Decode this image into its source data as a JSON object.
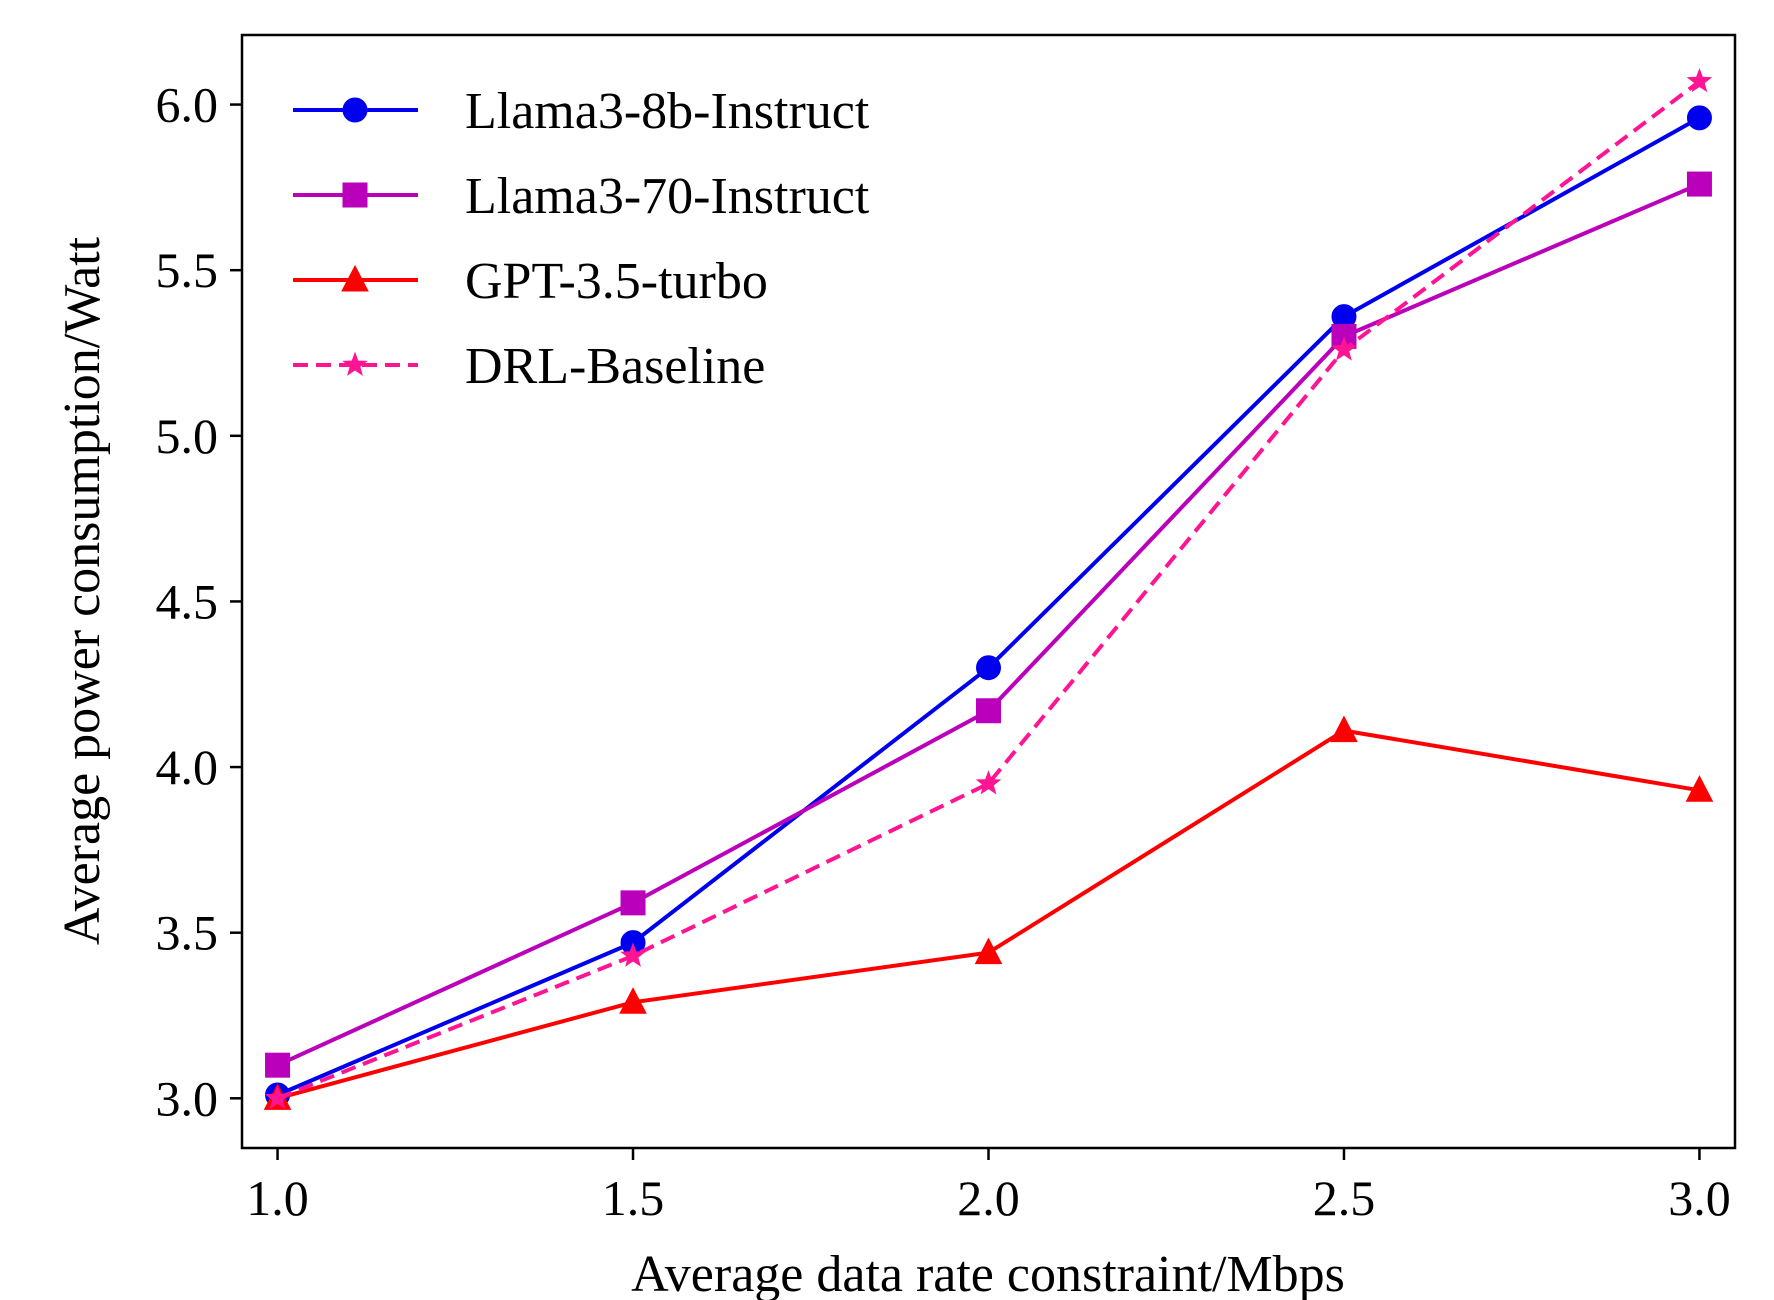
{
  "chart_data": {
    "type": "line",
    "title": "",
    "xlabel": "Average data rate constraint/Mbps",
    "ylabel": "Average power consumption/Watt",
    "x": [
      1.0,
      1.5,
      2.0,
      2.5,
      3.0
    ],
    "xlim": [
      0.95,
      3.05
    ],
    "ylim": [
      2.85,
      6.21
    ],
    "xticks": [
      "1.0",
      "1.5",
      "2.0",
      "2.5",
      "3.0"
    ],
    "xtick_values": [
      1.0,
      1.5,
      2.0,
      2.5,
      3.0
    ],
    "yticks": [
      "3.0",
      "3.5",
      "4.0",
      "4.5",
      "5.0",
      "5.5",
      "6.0"
    ],
    "ytick_values": [
      3.0,
      3.5,
      4.0,
      4.5,
      5.0,
      5.5,
      6.0
    ],
    "grid": false,
    "legend": "top-left",
    "series": [
      {
        "name": "Llama3-8b-Instruct",
        "values": [
          3.01,
          3.47,
          4.3,
          5.36,
          5.96
        ],
        "color": "#0000ee",
        "marker": "circle",
        "dash": "solid"
      },
      {
        "name": "Llama3-70-Instruct",
        "values": [
          3.1,
          3.59,
          4.17,
          5.3,
          5.76
        ],
        "color": "#bb00bb",
        "marker": "square",
        "dash": "solid"
      },
      {
        "name": "GPT-3.5-turbo",
        "values": [
          3.0,
          3.29,
          3.44,
          4.11,
          3.93
        ],
        "color": "#ff0000",
        "marker": "triangle",
        "dash": "solid"
      },
      {
        "name": "DRL-Baseline",
        "values": [
          3.0,
          3.43,
          3.95,
          5.26,
          6.07
        ],
        "color": "#ff1493",
        "marker": "star",
        "dash": "dashed"
      }
    ]
  }
}
